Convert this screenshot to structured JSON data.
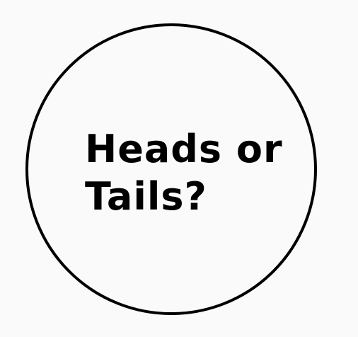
{
  "coin": {
    "line1": "Heads or",
    "line2": "Tails?"
  },
  "colors": {
    "background": "#fafafa",
    "outline": "#000000",
    "text": "#000000"
  }
}
